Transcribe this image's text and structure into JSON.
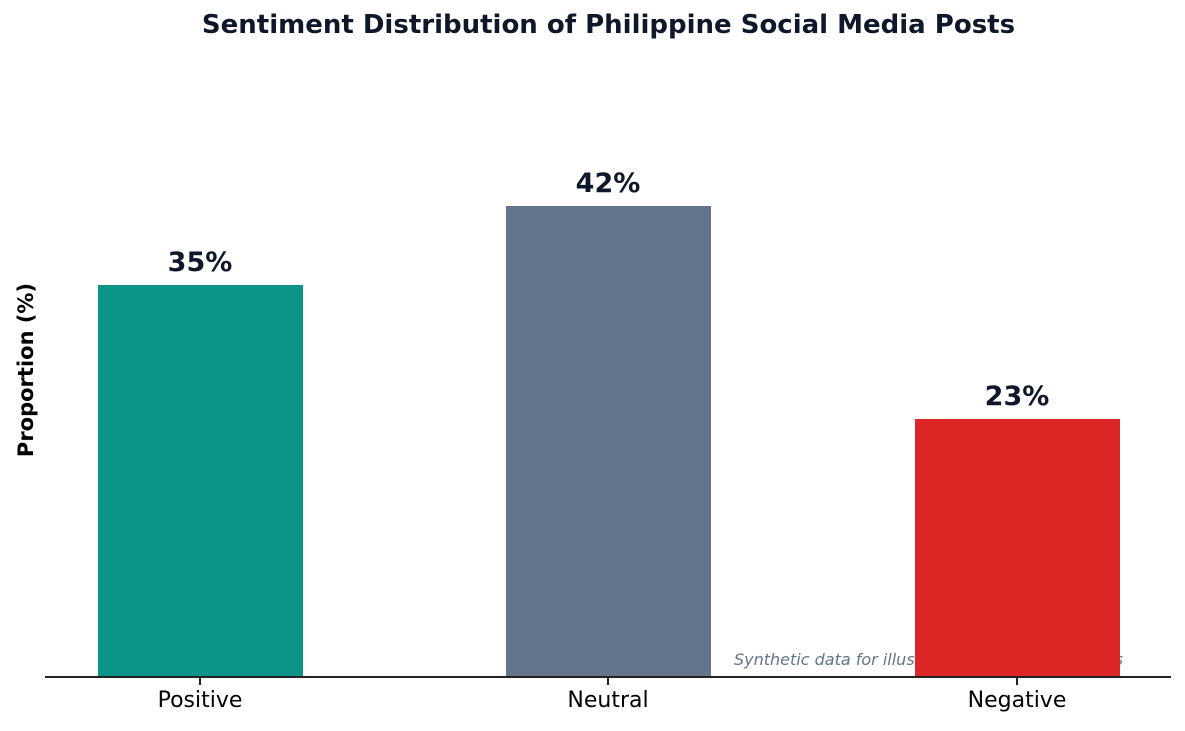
{
  "chart_data": {
    "type": "bar",
    "title": "Sentiment Distribution of Philippine Social Media Posts",
    "xlabel": "",
    "ylabel": "Proportion (%)",
    "categories": [
      "Positive",
      "Neutral",
      "Negative"
    ],
    "values": [
      35,
      42,
      23
    ],
    "value_labels": [
      "35%",
      "42%",
      "23%"
    ],
    "colors": [
      "#0d9488",
      "#64748b",
      "#dc2626"
    ],
    "ylim": [
      0,
      56
    ],
    "grid": false,
    "annotation": "Synthetic data for illustration  |  N = 10,000 posts"
  }
}
